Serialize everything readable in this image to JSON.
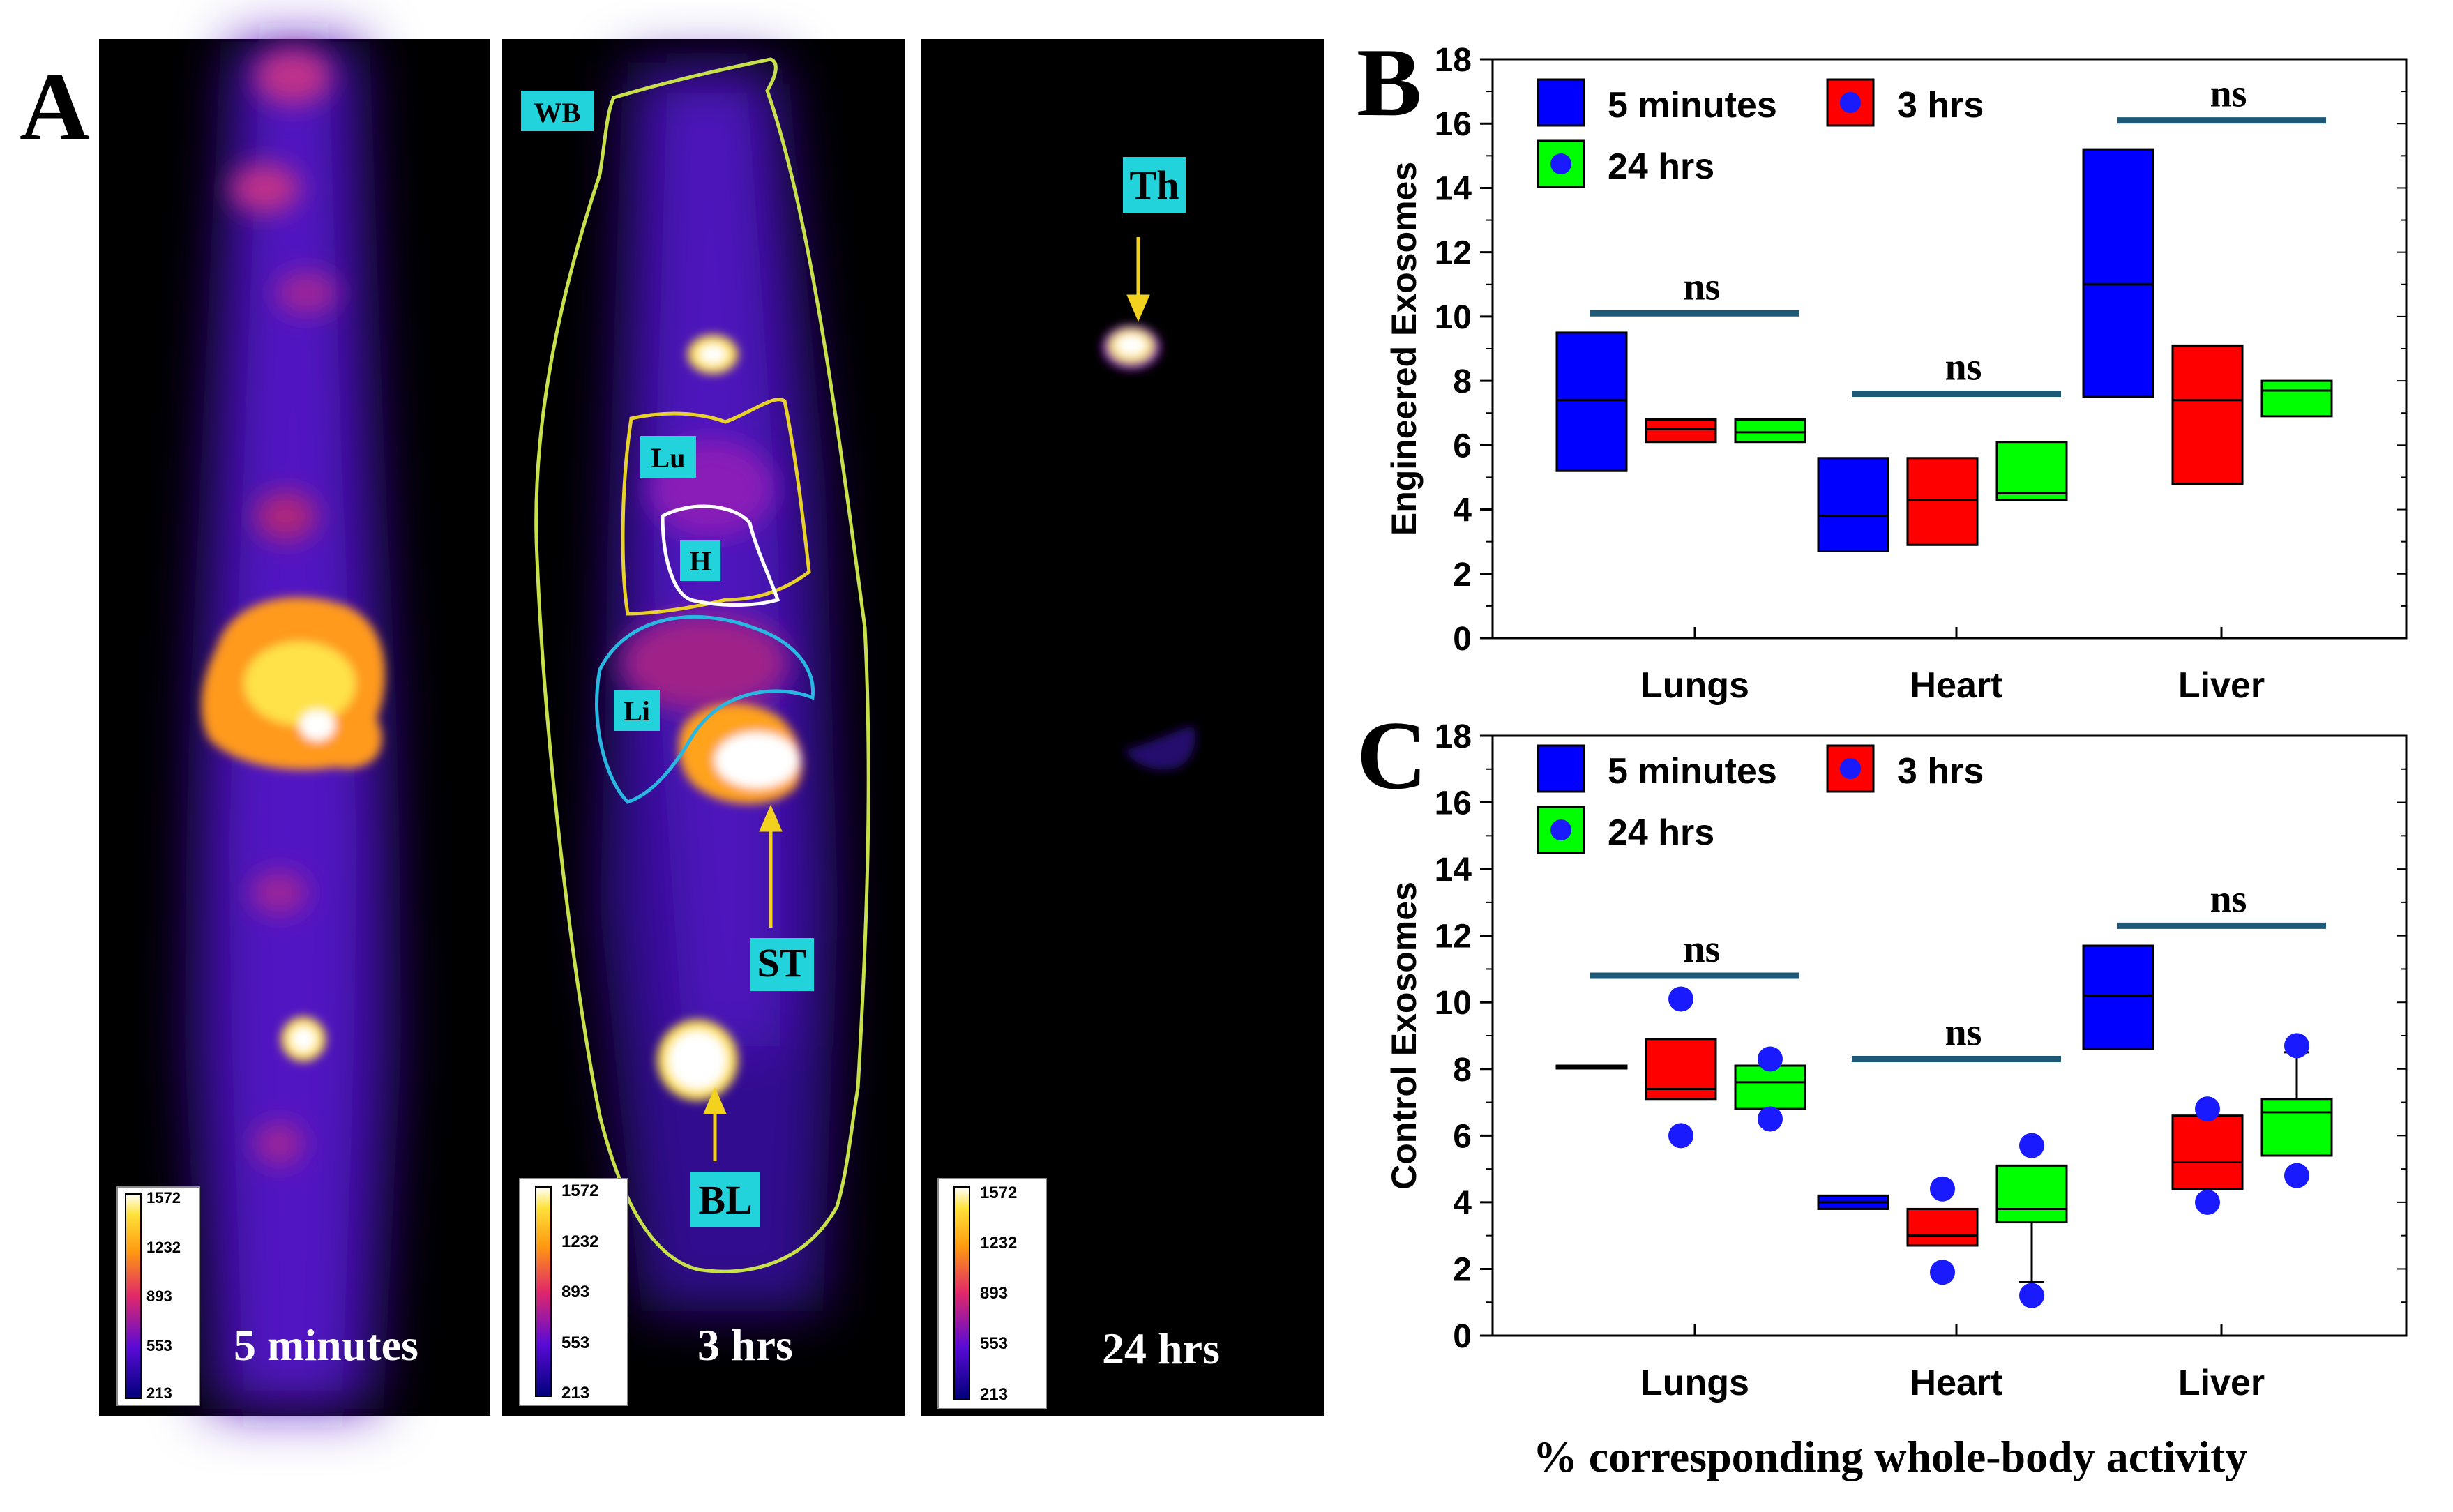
{
  "panel_a": {
    "letter": "A",
    "images": [
      {
        "time_label": "5 minutes",
        "scale_ticks": [
          "1572",
          "1232",
          "893",
          "553",
          "213"
        ]
      },
      {
        "time_label": "3 hrs",
        "scale_ticks": [
          "1572",
          "1232",
          "893",
          "553",
          "213"
        ],
        "roi_labels": {
          "wb": "WB",
          "lu": "Lu",
          "h": "H",
          "li": "Li",
          "st": "ST",
          "bl": "BL"
        }
      },
      {
        "time_label": "24 hrs",
        "scale_ticks": [
          "1572",
          "1232",
          "893",
          "553",
          "213"
        ],
        "roi_labels": {
          "th": "Th"
        }
      }
    ],
    "colors": {
      "background": "#000000",
      "roi_wb": "#c8e04a",
      "roi_lu": "#e8d22a",
      "roi_h": "#ffffff",
      "roi_li": "#29b6e0",
      "label_bg": "#22d3dc",
      "arrow": "#f2d21e"
    }
  },
  "common_xlabel": "% corresponding whole-body activity",
  "chart_data": [
    {
      "type": "box",
      "panel": "B",
      "ylabel": "Engineered Exosomes",
      "ylim": [
        0,
        18
      ],
      "yticks": [
        "0",
        "2",
        "4",
        "6",
        "8",
        "10",
        "12",
        "14",
        "16",
        "18"
      ],
      "categories": [
        "Lungs",
        "Heart",
        "Liver"
      ],
      "legend": [
        "5 minutes",
        "3 hrs",
        "24 hrs"
      ],
      "legend_position": "top-left",
      "colors": [
        "#0000ff",
        "#ff0000",
        "#00ff00"
      ],
      "ns_label": "ns",
      "ns_levels": [
        10.1,
        7.6,
        16.1
      ],
      "series": [
        {
          "boxes": [
            {
              "q1": 5.2,
              "median": 7.4,
              "q3": 9.5
            },
            {
              "q1": 2.7,
              "median": 3.8,
              "q3": 5.6
            },
            {
              "q1": 7.5,
              "median": 11.0,
              "q3": 15.2
            }
          ]
        },
        {
          "boxes": [
            {
              "q1": 6.1,
              "median": 6.5,
              "q3": 6.8
            },
            {
              "q1": 2.9,
              "median": 4.3,
              "q3": 5.6
            },
            {
              "q1": 4.8,
              "median": 7.4,
              "q3": 9.1
            }
          ]
        },
        {
          "boxes": [
            {
              "q1": 6.1,
              "median": 6.4,
              "q3": 6.8
            },
            {
              "q1": 4.3,
              "median": 4.5,
              "q3": 6.1
            },
            {
              "q1": 6.9,
              "median": 7.7,
              "q3": 8.0
            }
          ]
        }
      ]
    },
    {
      "type": "box",
      "panel": "C",
      "ylabel": "Control Exosomes",
      "ylim": [
        0,
        18
      ],
      "yticks": [
        "0",
        "2",
        "4",
        "6",
        "8",
        "10",
        "12",
        "14",
        "16",
        "18"
      ],
      "categories": [
        "Lungs",
        "Heart",
        "Liver"
      ],
      "legend": [
        "5 minutes",
        "3 hrs",
        "24 hrs"
      ],
      "legend_position": "top-left",
      "colors": [
        "#0000ff",
        "#ff0000",
        "#00ff00"
      ],
      "ns_label": "ns",
      "ns_levels": [
        10.8,
        8.3,
        12.3
      ],
      "series": [
        {
          "boxes": [
            {
              "q1": 8.1,
              "median": 8.1,
              "q3": 8.1,
              "outliers": []
            },
            {
              "q1": 3.8,
              "median": 4.0,
              "q3": 4.2,
              "outliers": []
            },
            {
              "q1": 8.6,
              "median": 10.2,
              "q3": 11.7,
              "outliers": []
            }
          ]
        },
        {
          "boxes": [
            {
              "q1": 7.1,
              "median": 7.4,
              "q3": 8.9,
              "outliers": [
                10.1,
                6.0
              ]
            },
            {
              "q1": 2.7,
              "median": 3.0,
              "q3": 3.8,
              "outliers": [
                4.4,
                1.9
              ]
            },
            {
              "q1": 4.4,
              "median": 5.2,
              "q3": 6.6,
              "outliers": [
                6.8,
                4.0
              ]
            }
          ]
        },
        {
          "boxes": [
            {
              "q1": 6.8,
              "median": 7.6,
              "q3": 8.1,
              "outliers": [
                8.3,
                6.5
              ]
            },
            {
              "q1": 3.4,
              "median": 3.8,
              "q3": 5.1,
              "whisker_low": 1.6,
              "outliers": [
                5.7,
                1.2
              ]
            },
            {
              "q1": 5.4,
              "median": 6.7,
              "q3": 7.1,
              "whisker_high": 8.5,
              "outliers": [
                8.7,
                4.8
              ]
            }
          ]
        }
      ]
    }
  ]
}
